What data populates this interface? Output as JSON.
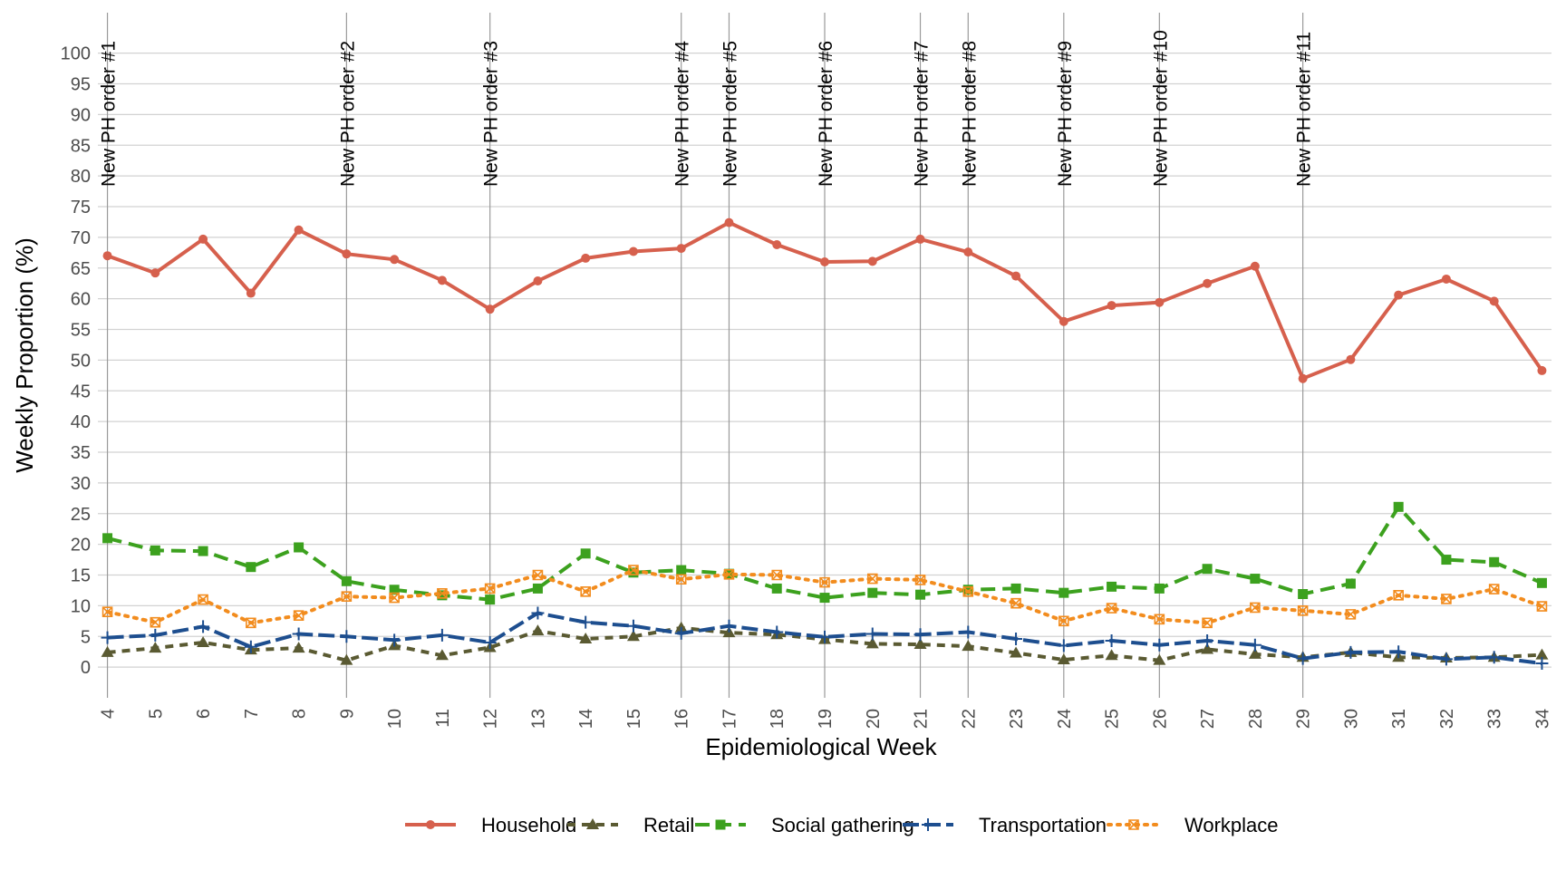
{
  "chart_data": {
    "type": "line",
    "xlabel": "Epidemiological Week",
    "ylabel": "Weekly Proportion (%)",
    "x": [
      4,
      5,
      6,
      7,
      8,
      9,
      10,
      11,
      12,
      13,
      14,
      15,
      16,
      17,
      18,
      19,
      20,
      21,
      22,
      23,
      24,
      25,
      26,
      27,
      28,
      29,
      30,
      31,
      32,
      33,
      34
    ],
    "xlim": [
      3.8,
      34.2
    ],
    "ylim": [
      -5,
      106
    ],
    "yticks": [
      0,
      5,
      10,
      15,
      20,
      25,
      30,
      35,
      40,
      45,
      50,
      55,
      60,
      65,
      70,
      75,
      80,
      85,
      90,
      95,
      100
    ],
    "grid": true,
    "legend_position": "bottom",
    "series": [
      {
        "name": "Household",
        "color": "#d6604d",
        "dash": "",
        "marker": "circle",
        "values": [
          67.0,
          64.2,
          69.7,
          60.9,
          71.2,
          67.3,
          66.4,
          63.0,
          58.3,
          62.9,
          66.6,
          67.7,
          68.2,
          72.4,
          68.8,
          66.0,
          66.1,
          69.7,
          67.6,
          63.7,
          56.3,
          58.9,
          59.4,
          62.5,
          65.3,
          47.0,
          50.1,
          60.6,
          63.2,
          59.6,
          48.3
        ]
      },
      {
        "name": "Retail",
        "color": "#5a5a32",
        "dash": "9,7",
        "marker": "triangle",
        "values": [
          2.4,
          3.1,
          4.0,
          2.8,
          3.1,
          1.1,
          3.5,
          1.9,
          3.2,
          5.9,
          4.6,
          5.0,
          6.4,
          5.6,
          5.3,
          4.5,
          3.8,
          3.7,
          3.4,
          2.3,
          1.2,
          1.9,
          1.1,
          2.9,
          2.1,
          1.6,
          2.4,
          1.6,
          1.5,
          1.6,
          2.0
        ]
      },
      {
        "name": "Social gathering",
        "color": "#3ca11e",
        "dash": "16,8",
        "marker": "square",
        "values": [
          21.0,
          19.0,
          18.9,
          16.3,
          19.5,
          14.0,
          12.6,
          11.7,
          11.0,
          12.8,
          18.5,
          15.4,
          15.8,
          15.2,
          12.8,
          11.3,
          12.1,
          11.8,
          12.6,
          12.8,
          12.1,
          13.1,
          12.8,
          16.0,
          14.4,
          11.9,
          13.6,
          26.1,
          17.5,
          17.1,
          13.7
        ]
      },
      {
        "name": "Transportation",
        "color": "#1d4e8f",
        "dash": "18,6",
        "marker": "plus",
        "values": [
          4.8,
          5.2,
          6.6,
          3.3,
          5.4,
          5.0,
          4.4,
          5.2,
          4.0,
          8.8,
          7.3,
          6.7,
          5.5,
          6.7,
          5.7,
          4.9,
          5.4,
          5.3,
          5.7,
          4.6,
          3.5,
          4.3,
          3.6,
          4.3,
          3.6,
          1.4,
          2.4,
          2.5,
          1.3,
          1.6,
          0.6
        ]
      },
      {
        "name": "Workplace",
        "color": "#f28c1e",
        "dash": "3,7",
        "marker": "boxx",
        "values": [
          9.0,
          7.3,
          11.0,
          7.2,
          8.4,
          11.5,
          11.3,
          12.0,
          12.8,
          15.0,
          12.3,
          15.8,
          14.3,
          15.1,
          15.0,
          13.8,
          14.4,
          14.2,
          12.3,
          10.4,
          7.5,
          9.6,
          7.8,
          7.2,
          9.7,
          9.2,
          8.6,
          11.7,
          11.1,
          12.7,
          9.9
        ]
      }
    ],
    "events": [
      {
        "x": 4,
        "label": "New PH order #1"
      },
      {
        "x": 9,
        "label": "New PH order #2"
      },
      {
        "x": 12,
        "label": "New PH order #3"
      },
      {
        "x": 16,
        "label": "New PH order #4"
      },
      {
        "x": 17,
        "label": "New PH order #5"
      },
      {
        "x": 19,
        "label": "New PH order #6"
      },
      {
        "x": 21,
        "label": "New PH order #7"
      },
      {
        "x": 22,
        "label": "New PH order #8"
      },
      {
        "x": 24,
        "label": "New PH order #9"
      },
      {
        "x": 26,
        "label": "New PH order #10"
      },
      {
        "x": 29,
        "label": "New PH order #11"
      }
    ]
  }
}
